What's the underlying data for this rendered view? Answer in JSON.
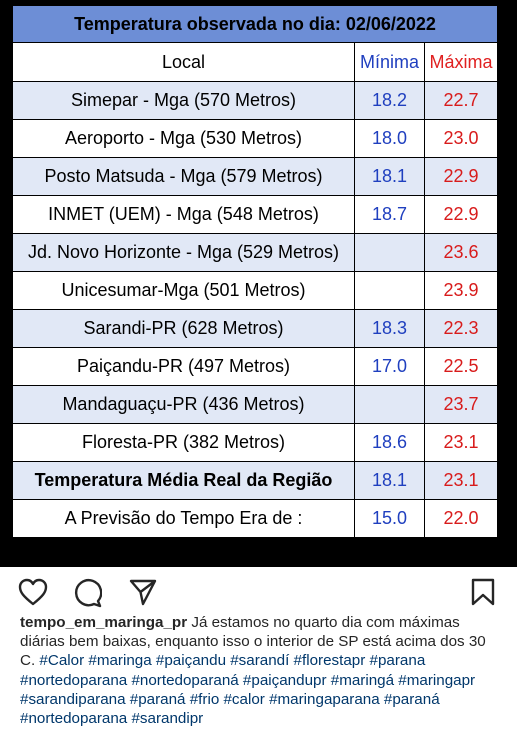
{
  "table": {
    "title": "Temperatura observada no dia: 02/06/2022",
    "headers": {
      "local": "Local",
      "min": "Mínima",
      "max": "Máxima"
    },
    "rows": [
      {
        "local": "Simepar - Mga  (570 Metros)",
        "min": "18.2",
        "max": "22.7"
      },
      {
        "local": "Aeroporto - Mga (530 Metros)",
        "min": "18.0",
        "max": "23.0"
      },
      {
        "local": "Posto Matsuda - Mga (579 Metros)",
        "min": "18.1",
        "max": "22.9"
      },
      {
        "local": "INMET (UEM) - Mga  (548 Metros)",
        "min": "18.7",
        "max": "22.9"
      },
      {
        "local": "Jd. Novo Horizonte - Mga (529 Metros)",
        "min": "",
        "max": "23.6"
      },
      {
        "local": "Unicesumar-Mga (501 Metros)",
        "min": "",
        "max": "23.9"
      },
      {
        "local": "Sarandi-PR  (628 Metros)",
        "min": "18.3",
        "max": "22.3"
      },
      {
        "local": "Paiçandu-PR (497 Metros)",
        "min": "17.0",
        "max": "22.5"
      },
      {
        "local": "Mandaguaçu-PR (436 Metros)",
        "min": "",
        "max": "23.7"
      },
      {
        "local": "Floresta-PR (382 Metros)",
        "min": "18.6",
        "max": "23.1"
      },
      {
        "local": "Temperatura Média Real da Região",
        "min": "18.1",
        "max": "23.1"
      },
      {
        "local": "A Previsão do Tempo Era de :",
        "min": "15.0",
        "max": "22.0"
      }
    ]
  },
  "actions": {
    "icons": [
      "heart-icon",
      "comment-icon",
      "share-icon",
      "bookmark-icon"
    ]
  },
  "caption": {
    "username": "tempo_em_maringa_pr",
    "text": " Já estamos no quarto dia com máximas diárias bem baixas, enquanto isso o interior de SP está acima dos 30 C. ",
    "hashtags": "#Calor #maringa #paiçandu #sarandí #florestapr #parana #nortedoparana #nortedoparaná #paiçandupr #maringá #maringapr #sarandiparana #paraná #frio #calor #maringaparana #paraná #nortedoparana #sarandipr"
  }
}
